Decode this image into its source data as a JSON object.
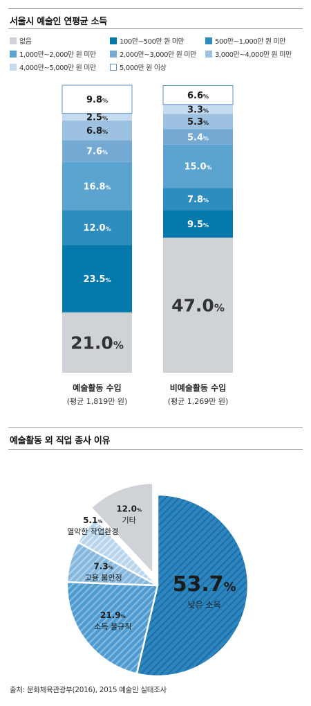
{
  "chart_data": [
    {
      "type": "stacked-bar",
      "title": "서울시 예술인 연평균 소득",
      "categories": [
        {
          "label": "예술활동 수입",
          "sublabel": "(평균 1,819만 원)"
        },
        {
          "label": "비예술활동 수입",
          "sublabel": "(평균 1,269만 원)"
        }
      ],
      "unit_suffix": "%",
      "series": [
        {
          "name": "없음",
          "color": "#cfd3d7",
          "values": [
            21.0,
            47.0
          ]
        },
        {
          "name": "100만~500만 원 미만",
          "color": "#0579ab",
          "values": [
            23.5,
            9.5
          ]
        },
        {
          "name": "500만~1,000만 원 미만",
          "color": "#2d8dbf",
          "values": [
            12.0,
            7.8
          ]
        },
        {
          "name": "1,000만~2,000만 원 미만",
          "color": "#5ba4cf",
          "values": [
            16.8,
            15.0
          ]
        },
        {
          "name": "2,000만~3,000만 원 미만",
          "color": "#73a9d3",
          "values": [
            7.6,
            5.4
          ]
        },
        {
          "name": "3,000만~4,000만 원 미만",
          "color": "#9cc1e1",
          "values": [
            6.8,
            5.3
          ]
        },
        {
          "name": "4,000만~5,000만 원 미만",
          "color": "#c5dbef",
          "values": [
            2.5,
            3.3
          ]
        },
        {
          "name": "5,000만 원 이상",
          "color": "#ffffff",
          "values": [
            9.8,
            6.6
          ]
        }
      ]
    },
    {
      "type": "pie",
      "title": "예술활동 외 직업 종사 이유",
      "unit_suffix": "%",
      "slices": [
        {
          "label": "낮은 소득",
          "value": 53.7,
          "color": "#2c86c0",
          "stripe": "#1f6fa6",
          "exploded": false
        },
        {
          "label": "소득 불규칙",
          "value": 21.9,
          "color": "#4f9bcf",
          "stripe": "#86bde3",
          "exploded": false
        },
        {
          "label": "고용 불안정",
          "value": 7.3,
          "color": "#86b8de",
          "stripe": "#b3d2ec",
          "exploded": false
        },
        {
          "label": "열악한 작업환경",
          "value": 5.1,
          "color": "#b9d5ec",
          "stripe": "#dcebf7",
          "exploded": false
        },
        {
          "label": "기타",
          "value": 12.0,
          "color": "#cfd3d7",
          "stripe": null,
          "exploded": true
        }
      ]
    }
  ],
  "source": "출처: 문화체육관광부(2016), 2015 예술인 실태조사"
}
